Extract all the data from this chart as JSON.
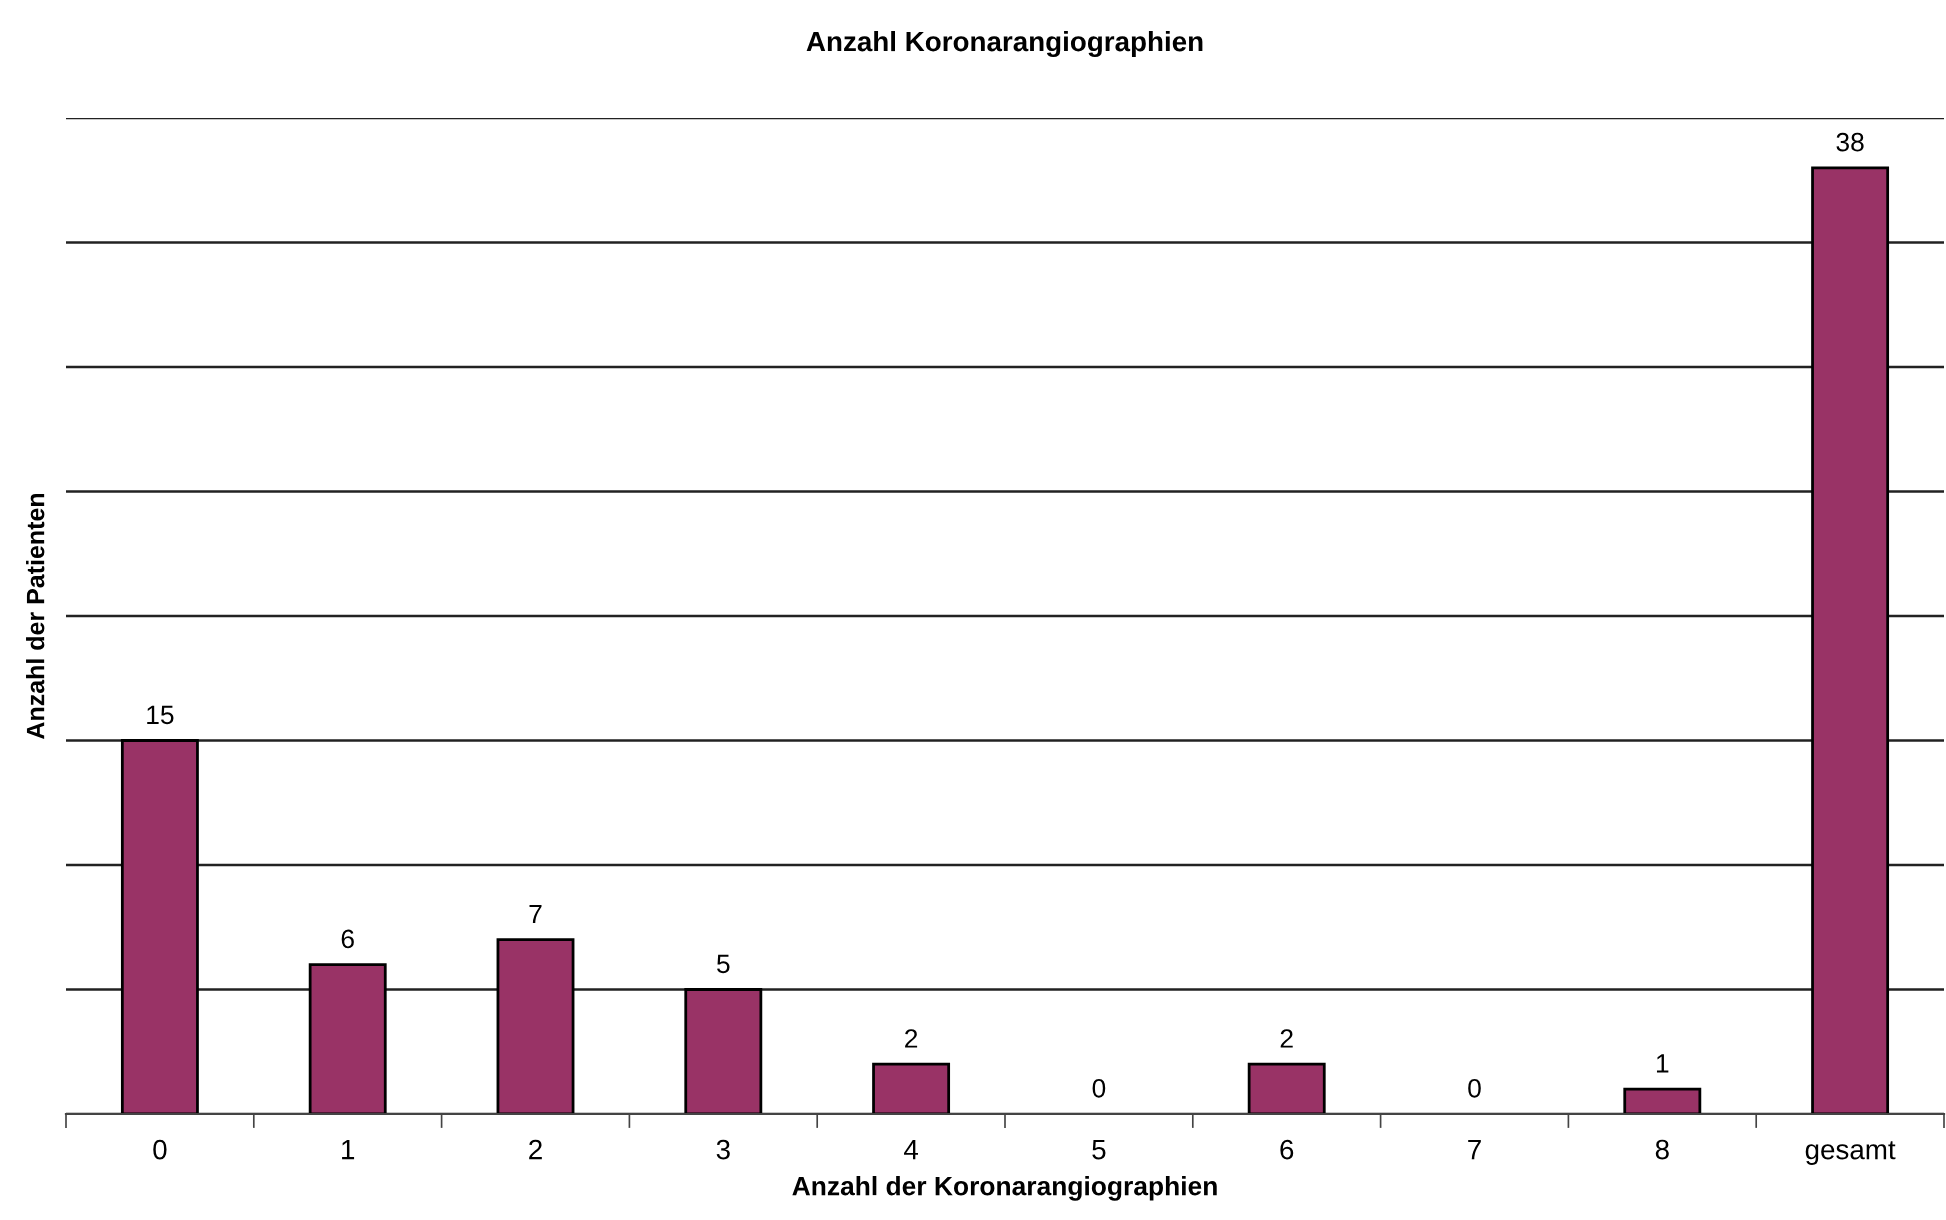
{
  "chart_data": {
    "type": "bar",
    "title": "Anzahl Koronarangiographien",
    "xlabel": "Anzahl der Koronarangiographien",
    "ylabel": "Anzahl der Patienten",
    "categories": [
      "0",
      "1",
      "2",
      "3",
      "4",
      "5",
      "6",
      "7",
      "8",
      "gesamt"
    ],
    "values": [
      15,
      6,
      7,
      5,
      2,
      0,
      2,
      0,
      1,
      38
    ],
    "color": "#993366",
    "ylim": [
      0,
      40
    ],
    "yticks": [
      {
        "value": 0,
        "label": null
      },
      {
        "value": 5,
        "label": null
      },
      {
        "value": 10,
        "label": null
      },
      {
        "value": 15,
        "label": null
      },
      {
        "value": 20,
        "label": null
      },
      {
        "value": 25,
        "label": null
      },
      {
        "value": 30,
        "label": null
      },
      {
        "value": 35,
        "label": null
      },
      {
        "value": 40,
        "label": null
      }
    ],
    "grid": "y",
    "tick_labels": "x",
    "data_labels": true
  }
}
